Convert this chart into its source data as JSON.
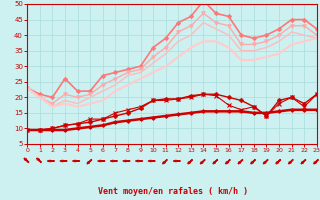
{
  "xlabel": "Vent moyen/en rafales ( km/h )",
  "xlim": [
    0,
    23
  ],
  "ylim": [
    5,
    50
  ],
  "yticks": [
    5,
    10,
    15,
    20,
    25,
    30,
    35,
    40,
    45,
    50
  ],
  "xticks": [
    0,
    1,
    2,
    3,
    4,
    5,
    6,
    7,
    8,
    9,
    10,
    11,
    12,
    13,
    14,
    15,
    16,
    17,
    18,
    19,
    20,
    21,
    22,
    23
  ],
  "background_color": "#cdf0f0",
  "grid_color": "#aadddd",
  "series": [
    {
      "x": [
        0,
        1,
        2,
        3,
        4,
        5,
        6,
        7,
        8,
        9,
        10,
        11,
        12,
        13,
        14,
        15,
        16,
        17,
        18,
        19,
        20,
        21,
        22,
        23
      ],
      "y": [
        9.5,
        9.5,
        9.5,
        9.5,
        10,
        10.5,
        11,
        12,
        12.5,
        13,
        13.5,
        14,
        14.5,
        15,
        15.5,
        15.5,
        15.5,
        15.5,
        15,
        15,
        15.5,
        16,
        16,
        16
      ],
      "color": "#cc0000",
      "linewidth": 1.8,
      "marker": "D",
      "markersize": 1.8,
      "alpha": 1.0
    },
    {
      "x": [
        0,
        1,
        2,
        3,
        4,
        5,
        6,
        7,
        8,
        9,
        10,
        11,
        12,
        13,
        14,
        15,
        16,
        17,
        18,
        19,
        20,
        21,
        22,
        23
      ],
      "y": [
        9.5,
        9.5,
        10,
        11,
        11.5,
        12,
        13,
        14,
        15,
        16.5,
        19,
        19.5,
        19.5,
        20.5,
        21,
        21,
        20,
        19,
        17,
        14,
        19,
        20,
        18,
        21
      ],
      "color": "#cc0000",
      "linewidth": 1.0,
      "marker": "P",
      "markersize": 2.5,
      "alpha": 1.0
    },
    {
      "x": [
        0,
        1,
        2,
        3,
        4,
        5,
        6,
        7,
        8,
        9,
        10,
        11,
        12,
        13,
        14,
        15,
        16,
        17,
        18,
        19,
        20,
        21,
        22,
        23
      ],
      "y": [
        9.5,
        9.5,
        10,
        11,
        11.5,
        13,
        13,
        15,
        16,
        17,
        19,
        19,
        19.5,
        20,
        21,
        20.5,
        17.5,
        16,
        17,
        14,
        18,
        20,
        17,
        21
      ],
      "color": "#cc0000",
      "linewidth": 0.8,
      "marker": "x",
      "markersize": 2.5,
      "alpha": 1.0
    },
    {
      "x": [
        0,
        1,
        2,
        3,
        4,
        5,
        6,
        7,
        8,
        9,
        10,
        11,
        12,
        13,
        14,
        15,
        16,
        17,
        18,
        19,
        20,
        21,
        22,
        23
      ],
      "y": [
        23,
        21,
        20,
        26,
        22,
        22,
        27,
        28,
        29,
        30,
        36,
        39,
        44,
        46,
        51,
        47,
        46,
        40,
        39,
        40,
        42,
        45,
        45,
        42
      ],
      "color": "#ff7777",
      "linewidth": 1.2,
      "marker": "D",
      "markersize": 2.0,
      "alpha": 1.0
    },
    {
      "x": [
        0,
        1,
        2,
        3,
        4,
        5,
        6,
        7,
        8,
        9,
        10,
        11,
        12,
        13,
        14,
        15,
        16,
        17,
        18,
        19,
        20,
        21,
        22,
        23
      ],
      "y": [
        23,
        20,
        18,
        21,
        20,
        21,
        24,
        26,
        28,
        29,
        33,
        36,
        41,
        43,
        47,
        44,
        43,
        37,
        37,
        38,
        40,
        43,
        43,
        40
      ],
      "color": "#ffaaaa",
      "linewidth": 1.0,
      "marker": "v",
      "markersize": 2.5,
      "alpha": 1.0
    },
    {
      "x": [
        0,
        1,
        2,
        3,
        4,
        5,
        6,
        7,
        8,
        9,
        10,
        11,
        12,
        13,
        14,
        15,
        16,
        17,
        18,
        19,
        20,
        21,
        22,
        23
      ],
      "y": [
        23,
        20,
        17,
        19,
        18,
        20,
        22,
        24,
        27,
        28,
        31,
        34,
        38,
        40,
        44,
        42,
        40,
        35,
        35,
        36,
        38,
        41,
        40,
        39
      ],
      "color": "#ffbbbb",
      "linewidth": 1.0,
      "marker": null,
      "markersize": 0,
      "alpha": 1.0
    },
    {
      "x": [
        0,
        1,
        2,
        3,
        4,
        5,
        6,
        7,
        8,
        9,
        10,
        11,
        12,
        13,
        14,
        15,
        16,
        17,
        18,
        19,
        20,
        21,
        22,
        23
      ],
      "y": [
        23,
        20,
        17,
        18,
        17,
        18,
        19,
        22,
        24,
        26,
        28,
        30,
        33,
        36,
        38,
        38,
        36,
        32,
        32,
        33,
        34,
        37,
        38,
        39
      ],
      "color": "#ffcccc",
      "linewidth": 1.5,
      "marker": null,
      "markersize": 0,
      "alpha": 1.0
    }
  ],
  "arrow_angles": [
    225,
    225,
    270,
    270,
    270,
    315,
    270,
    270,
    270,
    270,
    270,
    315,
    270,
    315,
    315,
    315,
    315,
    315,
    315,
    315,
    315,
    315,
    315,
    315
  ]
}
